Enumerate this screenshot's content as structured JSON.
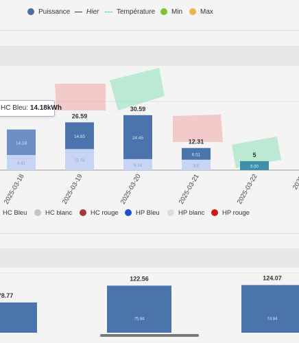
{
  "legend_top": [
    {
      "label": "Puissance",
      "marker": "dot",
      "color": "#4a6fa0"
    },
    {
      "label": "Hier",
      "marker": "line",
      "color": "#333333"
    },
    {
      "label": "Température",
      "marker": "dashed-line",
      "color": "#22bbaa"
    },
    {
      "label": "Min",
      "marker": "dot",
      "color": "#7cc531"
    },
    {
      "label": "Max",
      "marker": "dot",
      "color": "#f0b14f"
    }
  ],
  "tooltip": {
    "series": "HC Bleu",
    "value": "14.18kWh"
  },
  "chart_data": [
    {
      "type": "bar",
      "stacked": true,
      "categories": [
        "2025-03-18",
        "2025-03-19",
        "2025-03-20",
        "2025-03-21",
        "2025-03-22",
        "2025-"
      ],
      "series": [
        {
          "name": "HC Bleu",
          "values": [
            14.18,
            14.85,
            24.45,
            6.51,
            null,
            null
          ],
          "labels": [
            "14.18",
            "14.85",
            "24.45",
            "6.51",
            "",
            ""
          ]
        },
        {
          "name": "HC blanc",
          "values": [
            null,
            null,
            null,
            null,
            null,
            null
          ]
        },
        {
          "name": "HC rouge",
          "values": [
            null,
            null,
            null,
            null,
            null,
            null
          ]
        },
        {
          "name": "HP Bleu",
          "values": [
            8.41,
            11.74,
            6.14,
            5.8,
            5,
            null
          ],
          "labels": [
            "8.41",
            "11.74",
            "6.14",
            "5.8",
            "5.00",
            ""
          ]
        },
        {
          "name": "HP blanc",
          "values": [
            null,
            null,
            null,
            null,
            null,
            null
          ]
        },
        {
          "name": "HP rouge",
          "values": [
            null,
            null,
            null,
            null,
            null,
            null
          ]
        }
      ],
      "totals": [
        null,
        "26.59",
        "30.59",
        "12.31",
        "5",
        null
      ],
      "legend": [
        {
          "label": "HC Bleu",
          "color": "#6b8fc2"
        },
        {
          "label": "HC blanc",
          "color": "#c4c4c4"
        },
        {
          "label": "HC rouge",
          "color": "#a33a3a"
        },
        {
          "label": "HP Bleu",
          "color": "#1f4fd0"
        },
        {
          "label": "HP blanc",
          "color": "#dddddd"
        },
        {
          "label": "HP rouge",
          "color": "#d11a1a"
        }
      ],
      "legend_position": "bottom"
    },
    {
      "type": "bar",
      "stacked": false,
      "categories": [
        "",
        "",
        ""
      ],
      "totals": [
        "78.77",
        "122.56",
        "124.07"
      ],
      "series": [
        {
          "name": "",
          "values": [
            78.77,
            122.56,
            124.07
          ],
          "labels": [
            "",
            "75.84",
            "74.84"
          ]
        }
      ]
    }
  ]
}
